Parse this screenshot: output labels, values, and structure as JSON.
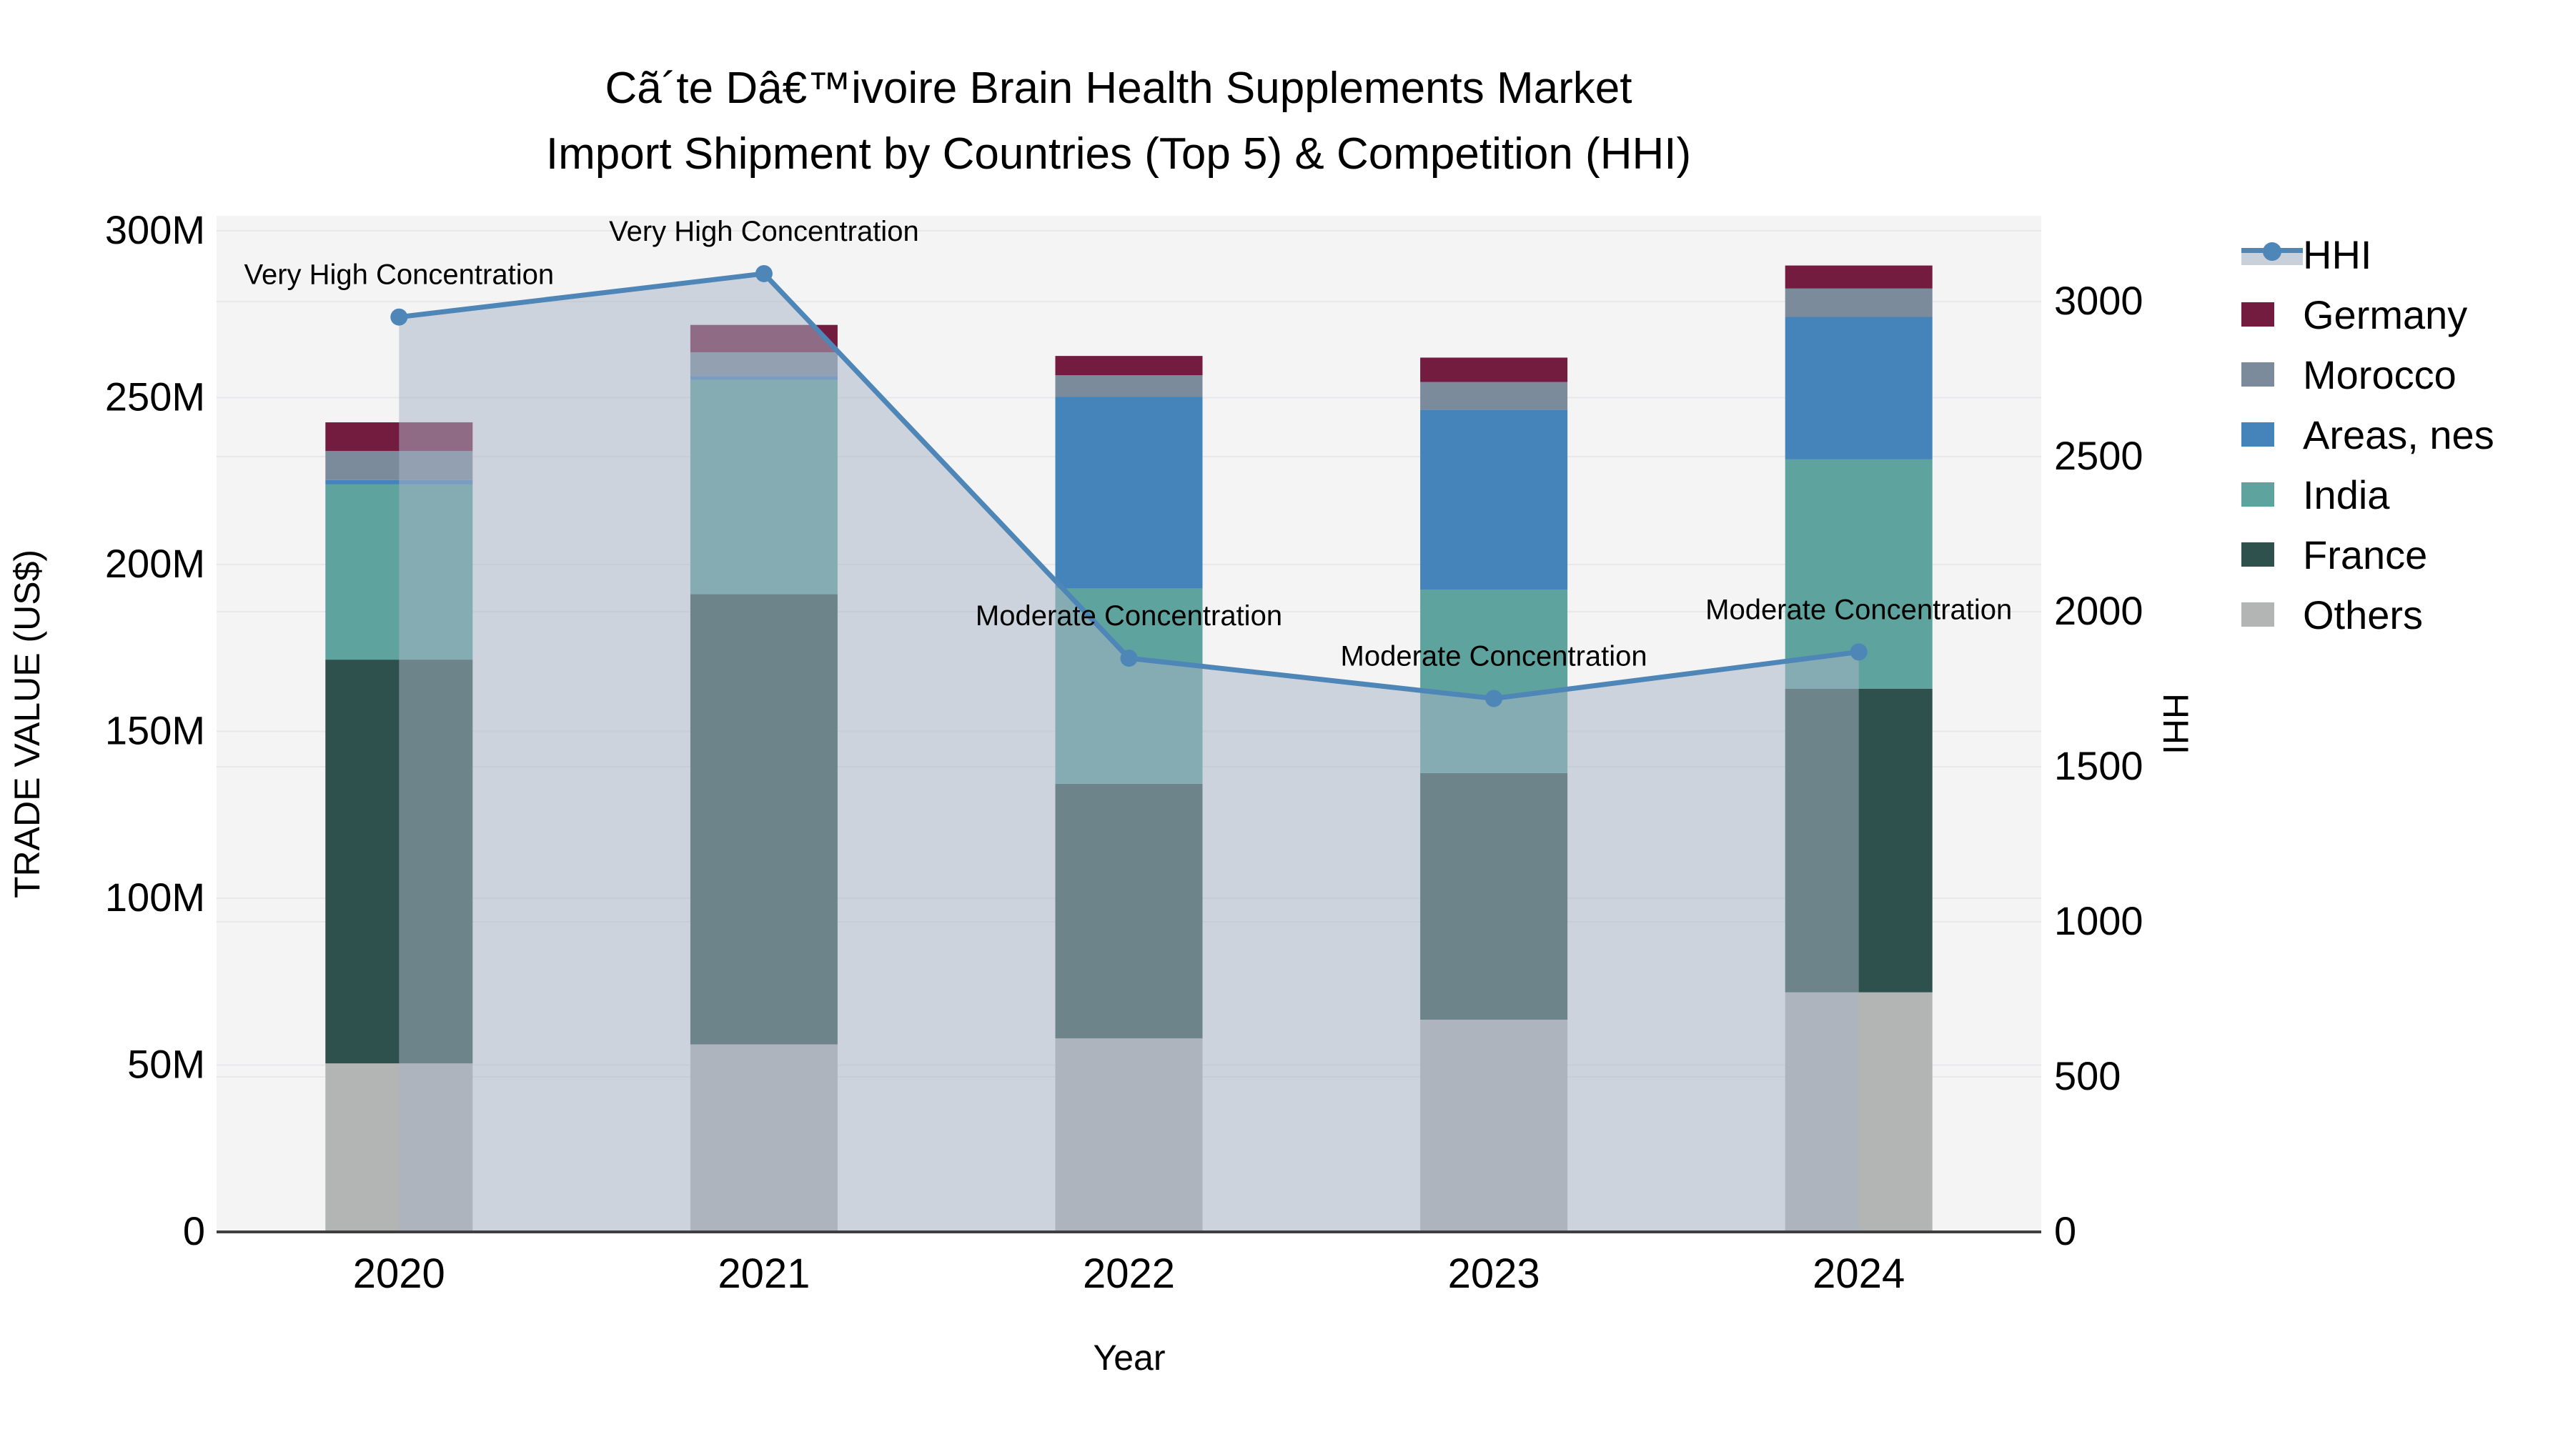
{
  "title": {
    "line1": "Cã´te Dâ€™ivoire Brain Health Supplements Market",
    "line2": "Import Shipment by Countries (Top 5) & Competition (HHI)"
  },
  "axes": {
    "x": {
      "title": "Year",
      "ticks": [
        "2020",
        "2021",
        "2022",
        "2023",
        "2024"
      ]
    },
    "y_left": {
      "title": "TRADE VALUE (US$)",
      "ticks": [
        "0",
        "50M",
        "100M",
        "150M",
        "200M",
        "250M",
        "300M"
      ],
      "tick_step_millions": 50,
      "range_millions": [
        0,
        304.7
      ]
    },
    "y_right": {
      "title": "HHI",
      "ticks": [
        "0",
        "500",
        "1000",
        "1500",
        "2000",
        "2500",
        "3000"
      ],
      "tick_step": 500,
      "range": [
        0,
        3276
      ]
    }
  },
  "colors": {
    "plot_background": "#f4f4f5",
    "gridline": "#e8e8ea",
    "axis_line": "#3f3f3f",
    "hhi_line": "#4e86b8",
    "hhi_fill": "rgba(168,181,198,0.52)",
    "hhi_fill_legend": "#c9d0d9",
    "text": "#000000"
  },
  "chart_data": {
    "type": "bar",
    "subtype": "stacked-bars-with-line-overlay",
    "categories": [
      "2020",
      "2021",
      "2022",
      "2023",
      "2024"
    ],
    "bar_value_unit": "USD millions",
    "series": [
      {
        "name": "Others",
        "color": "#b3b5b5",
        "values": [
          50.5,
          56.2,
          58.0,
          63.6,
          71.8
        ]
      },
      {
        "name": "France",
        "color": "#2e514d",
        "values": [
          121.0,
          134.9,
          76.3,
          73.9,
          91.0
        ]
      },
      {
        "name": "India",
        "color": "#5ea39e",
        "values": [
          52.5,
          64.2,
          58.5,
          55.0,
          68.7
        ]
      },
      {
        "name": "Areas, nes",
        "color": "#4583bb",
        "values": [
          1.3,
          1.2,
          57.5,
          53.9,
          42.7
        ]
      },
      {
        "name": "Morocco",
        "color": "#7c8b9c",
        "values": [
          8.7,
          7.1,
          6.4,
          8.3,
          8.5
        ]
      },
      {
        "name": "Germany",
        "color": "#731c40",
        "values": [
          8.6,
          8.2,
          5.8,
          7.3,
          6.9
        ]
      }
    ],
    "bar_totals_millions": [
      242.6,
      271.8,
      262.5,
      262.0,
      289.6
    ],
    "line_series": {
      "name": "HHI",
      "values": [
        2950,
        3090,
        1850,
        1720,
        1870
      ],
      "axis": "y_right"
    },
    "annotations": [
      {
        "category": "2020",
        "text": "Very High Concentration"
      },
      {
        "category": "2021",
        "text": "Very High Concentration"
      },
      {
        "category": "2022",
        "text": "Moderate Concentration"
      },
      {
        "category": "2023",
        "text": "Moderate Concentration"
      },
      {
        "category": "2024",
        "text": "Moderate Concentration"
      }
    ],
    "legend_position": "right",
    "grid": true
  },
  "legend": {
    "entries": [
      "HHI",
      "Germany",
      "Morocco",
      "Areas, nes",
      "India",
      "France",
      "Others"
    ]
  }
}
